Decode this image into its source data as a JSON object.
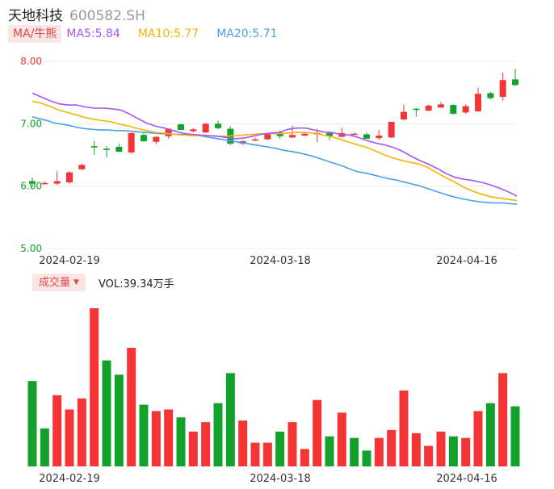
{
  "header": {
    "name": "天地科技",
    "code": "600582.SH"
  },
  "ma_bar": {
    "button": "MA/牛熊",
    "items": [
      {
        "label": "MA5:5.84",
        "color": "#a855f7"
      },
      {
        "label": "MA10:5.77",
        "color": "#f5b400"
      },
      {
        "label": "MA20:5.71",
        "color": "#4a9fea"
      }
    ]
  },
  "volume_bar": {
    "button": "成交量",
    "text": "VOL:39.34万手"
  },
  "colors": {
    "up": "#f53535",
    "down": "#12a12a",
    "grid": "#ececec"
  },
  "chart_data": [
    {
      "type": "candlestick",
      "y_ticks": [
        "8.00",
        "7.00",
        "6.00",
        "5.00"
      ],
      "ylim": [
        5.0,
        8.0
      ],
      "x_ticks": [
        "2024-02-19",
        "2024-03-18",
        "2024-04-16"
      ],
      "candles": [
        {
          "o": 6.08,
          "h": 6.14,
          "l": 5.98,
          "c": 6.04
        },
        {
          "o": 6.05,
          "h": 6.08,
          "l": 6.03,
          "c": 6.05
        },
        {
          "o": 6.04,
          "h": 6.24,
          "l": 6.02,
          "c": 6.08
        },
        {
          "o": 6.06,
          "h": 6.24,
          "l": 6.04,
          "c": 6.22
        },
        {
          "o": 6.27,
          "h": 6.36,
          "l": 6.26,
          "c": 6.34
        },
        {
          "o": 6.64,
          "h": 6.72,
          "l": 6.5,
          "c": 6.62
        },
        {
          "o": 6.6,
          "h": 6.64,
          "l": 6.46,
          "c": 6.58
        },
        {
          "o": 6.63,
          "h": 6.68,
          "l": 6.55,
          "c": 6.55
        },
        {
          "o": 6.54,
          "h": 6.86,
          "l": 6.52,
          "c": 6.85
        },
        {
          "o": 6.82,
          "h": 6.85,
          "l": 6.71,
          "c": 6.72
        },
        {
          "o": 6.71,
          "h": 6.8,
          "l": 6.67,
          "c": 6.79
        },
        {
          "o": 6.8,
          "h": 6.93,
          "l": 6.76,
          "c": 6.92
        },
        {
          "o": 6.99,
          "h": 7.0,
          "l": 6.9,
          "c": 6.9
        },
        {
          "o": 6.88,
          "h": 6.93,
          "l": 6.86,
          "c": 6.91
        },
        {
          "o": 6.86,
          "h": 7.01,
          "l": 6.85,
          "c": 7.0
        },
        {
          "o": 7.0,
          "h": 7.05,
          "l": 6.91,
          "c": 6.93
        },
        {
          "o": 6.92,
          "h": 6.96,
          "l": 6.66,
          "c": 6.68
        },
        {
          "o": 6.68,
          "h": 6.73,
          "l": 6.66,
          "c": 6.72
        },
        {
          "o": 6.74,
          "h": 6.78,
          "l": 6.72,
          "c": 6.75
        },
        {
          "o": 6.75,
          "h": 6.84,
          "l": 6.74,
          "c": 6.83
        },
        {
          "o": 6.86,
          "h": 6.89,
          "l": 6.76,
          "c": 6.8
        },
        {
          "o": 6.78,
          "h": 6.97,
          "l": 6.77,
          "c": 6.82
        },
        {
          "o": 6.81,
          "h": 6.86,
          "l": 6.8,
          "c": 6.84
        },
        {
          "o": 6.85,
          "h": 6.92,
          "l": 6.7,
          "c": 6.85
        },
        {
          "o": 6.85,
          "h": 6.88,
          "l": 6.74,
          "c": 6.8
        },
        {
          "o": 6.79,
          "h": 6.94,
          "l": 6.78,
          "c": 6.85
        },
        {
          "o": 6.82,
          "h": 6.86,
          "l": 6.82,
          "c": 6.84
        },
        {
          "o": 6.83,
          "h": 6.86,
          "l": 6.76,
          "c": 6.76
        },
        {
          "o": 6.77,
          "h": 6.9,
          "l": 6.74,
          "c": 6.81
        },
        {
          "o": 6.78,
          "h": 7.02,
          "l": 6.77,
          "c": 7.03
        },
        {
          "o": 7.07,
          "h": 7.31,
          "l": 7.05,
          "c": 7.19
        },
        {
          "o": 7.24,
          "h": 7.25,
          "l": 7.11,
          "c": 7.22
        },
        {
          "o": 7.21,
          "h": 7.31,
          "l": 7.2,
          "c": 7.29
        },
        {
          "o": 7.26,
          "h": 7.35,
          "l": 7.25,
          "c": 7.31
        },
        {
          "o": 7.3,
          "h": 7.31,
          "l": 7.15,
          "c": 7.16
        },
        {
          "o": 7.18,
          "h": 7.31,
          "l": 7.16,
          "c": 7.28
        },
        {
          "o": 7.2,
          "h": 7.58,
          "l": 7.19,
          "c": 7.48
        },
        {
          "o": 7.49,
          "h": 7.51,
          "l": 7.39,
          "c": 7.41
        },
        {
          "o": 7.43,
          "h": 7.82,
          "l": 7.37,
          "c": 7.7
        },
        {
          "o": 7.71,
          "h": 7.88,
          "l": 7.6,
          "c": 7.62
        }
      ],
      "ma5": [
        7.49,
        7.43,
        7.37,
        7.32,
        7.3,
        7.3,
        7.27,
        7.25,
        7.25,
        7.24,
        7.22,
        7.16,
        7.08,
        7.01,
        6.96,
        6.93,
        6.89,
        6.85,
        6.83,
        6.82,
        6.81,
        6.8,
        6.78,
        6.76,
        6.77,
        6.8,
        6.83,
        6.85,
        6.86,
        6.91,
        6.93,
        6.93,
        6.9,
        6.87,
        6.86,
        6.83,
        6.82,
        6.78,
        6.73,
        6.69,
        6.66,
        6.62,
        6.56,
        6.48,
        6.41,
        6.35,
        6.28,
        6.2,
        6.14,
        6.11,
        6.09,
        6.06,
        6.02,
        5.97,
        5.91,
        5.84
      ],
      "ma10": [
        7.36,
        7.33,
        7.28,
        7.22,
        7.18,
        7.14,
        7.1,
        7.07,
        7.05,
        7.03,
        6.99,
        6.96,
        6.92,
        6.89,
        6.86,
        6.85,
        6.83,
        6.82,
        6.81,
        6.81,
        6.81,
        6.8,
        6.8,
        6.81,
        6.82,
        6.83,
        6.84,
        6.84,
        6.84,
        6.85,
        6.86,
        6.86,
        6.85,
        6.82,
        6.79,
        6.75,
        6.7,
        6.66,
        6.62,
        6.56,
        6.5,
        6.45,
        6.41,
        6.38,
        6.35,
        6.29,
        6.21,
        6.13,
        6.06,
        5.98,
        5.92,
        5.87,
        5.83,
        5.81,
        5.79,
        5.77
      ],
      "ma20": [
        7.11,
        7.08,
        7.05,
        7.01,
        6.99,
        6.97,
        6.94,
        6.92,
        6.91,
        6.9,
        6.9,
        6.89,
        6.89,
        6.88,
        6.87,
        6.86,
        6.85,
        6.84,
        6.84,
        6.83,
        6.83,
        6.82,
        6.81,
        6.79,
        6.77,
        6.75,
        6.73,
        6.71,
        6.69,
        6.67,
        6.65,
        6.63,
        6.61,
        6.58,
        6.56,
        6.54,
        6.51,
        6.48,
        6.44,
        6.4,
        6.36,
        6.32,
        6.27,
        6.23,
        6.21,
        6.18,
        6.15,
        6.12,
        6.1,
        6.07,
        6.04,
        6.01,
        5.97,
        5.93,
        5.89,
        5.85,
        5.82,
        5.79,
        5.77,
        5.75,
        5.74,
        5.73,
        5.73,
        5.72,
        5.71
      ]
    },
    {
      "type": "bar",
      "title": "成交量",
      "x_ticks": [
        "2024-02-19",
        "2024-03-18",
        "2024-04-16"
      ],
      "values": [
        54,
        24,
        45,
        36,
        43,
        100,
        67,
        58,
        75,
        39,
        35,
        36,
        31,
        22,
        28,
        40,
        59,
        29,
        15,
        15,
        22,
        28,
        11,
        42,
        19,
        34,
        18,
        10,
        18,
        23,
        48,
        21,
        13,
        22,
        19,
        18,
        35,
        40,
        59,
        38
      ],
      "up": [
        0,
        0,
        1,
        1,
        1,
        1,
        0,
        0,
        1,
        0,
        1,
        1,
        0,
        1,
        1,
        0,
        0,
        1,
        1,
        1,
        0,
        1,
        1,
        1,
        0,
        1,
        0,
        0,
        1,
        1,
        1,
        1,
        1,
        1,
        0,
        1,
        1,
        0,
        1,
        0
      ]
    }
  ]
}
